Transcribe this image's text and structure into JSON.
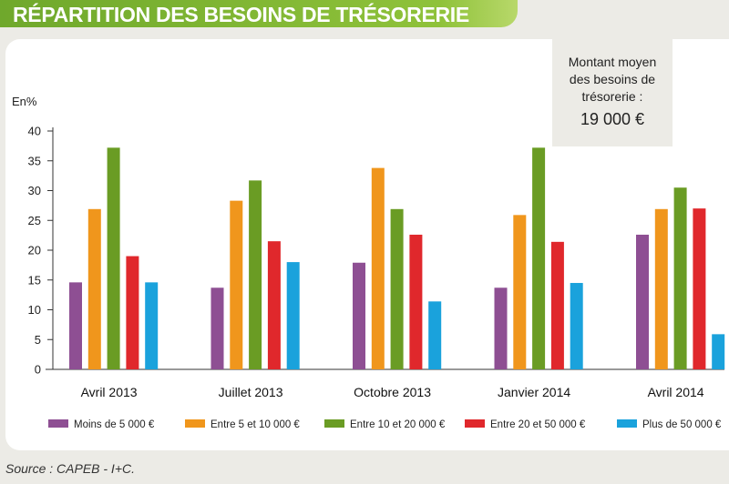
{
  "title": "RÉPARTITION DES BESOINS DE TRÉSORERIE",
  "info_box": {
    "label": "Montant moyen des besoins de trésorerie :",
    "value": "19 000 €"
  },
  "source": "Source : CAPEB - I+C.",
  "chart_data": {
    "type": "bar",
    "ylabel": "En%",
    "ylim": [
      0,
      40
    ],
    "yticks": [
      0,
      5,
      10,
      15,
      20,
      25,
      30,
      35,
      40
    ],
    "categories": [
      "Avril 2013",
      "Juillet 2013",
      "Octobre 2013",
      "Janvier 2014",
      "Avril 2014"
    ],
    "legend_position": "bottom",
    "series": [
      {
        "name": "Moins de 5 000 €",
        "color": "#8e4f93",
        "values": [
          14.6,
          13.7,
          17.9,
          13.7,
          22.6
        ]
      },
      {
        "name": "Entre 5 et 10 000 €",
        "color": "#f0961c",
        "values": [
          26.9,
          28.3,
          33.8,
          25.9,
          26.9
        ]
      },
      {
        "name": "Entre 10 et 20 000 €",
        "color": "#6a9c24",
        "values": [
          37.2,
          31.7,
          26.9,
          37.2,
          30.5
        ]
      },
      {
        "name": "Entre 20 et 50 000 €",
        "color": "#e0282c",
        "values": [
          19.0,
          21.5,
          22.6,
          21.4,
          27.0
        ]
      },
      {
        "name": "Plus de 50 000 €",
        "color": "#1aa2dc",
        "values": [
          14.6,
          18.0,
          11.4,
          14.5,
          5.9
        ]
      }
    ]
  }
}
